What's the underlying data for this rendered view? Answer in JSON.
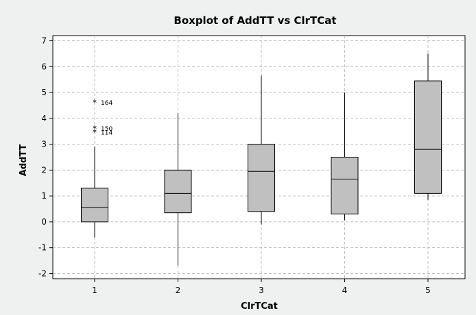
{
  "chart_data": {
    "type": "boxplot",
    "title": "Boxplot of AddTT vs ClrTCat",
    "xlabel": "ClrTCat",
    "ylabel": "AddTT",
    "categories": [
      "1",
      "2",
      "3",
      "4",
      "5"
    ],
    "ylim": [
      -2.2,
      7.2
    ],
    "yticks": [
      -2,
      -1,
      0,
      1,
      2,
      3,
      4,
      5,
      6,
      7
    ],
    "grid": true,
    "boxes": [
      {
        "category": "1",
        "whisker_low": -0.6,
        "q1": 0.0,
        "median": 0.55,
        "q3": 1.3,
        "whisker_high": 2.9,
        "outliers": [
          {
            "label": "164",
            "value": 4.6
          },
          {
            "label": "150",
            "value": 3.6
          },
          {
            "label": "114",
            "value": 3.45
          }
        ]
      },
      {
        "category": "2",
        "whisker_low": -1.7,
        "q1": 0.35,
        "median": 1.1,
        "q3": 2.0,
        "whisker_high": 4.2,
        "outliers": []
      },
      {
        "category": "3",
        "whisker_low": -0.1,
        "q1": 0.4,
        "median": 1.95,
        "q3": 3.0,
        "whisker_high": 5.65,
        "outliers": []
      },
      {
        "category": "4",
        "whisker_low": 0.05,
        "q1": 0.3,
        "median": 1.65,
        "q3": 2.5,
        "whisker_high": 5.0,
        "outliers": []
      },
      {
        "category": "5",
        "whisker_low": 0.85,
        "q1": 1.1,
        "median": 2.8,
        "q3": 5.45,
        "whisker_high": 6.5,
        "outliers": []
      }
    ],
    "colors": {
      "box_fill": "#c0c0c0",
      "box_stroke": "#000000",
      "grid": "#bdbdbd",
      "plot_bg": "#ffffff",
      "frame_bg": "#eff0f0"
    }
  }
}
